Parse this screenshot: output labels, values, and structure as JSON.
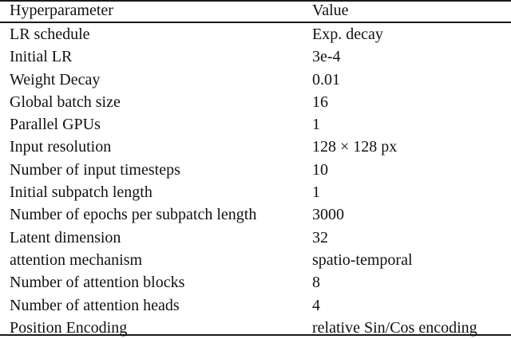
{
  "table": {
    "header": {
      "param": "Hyperparameter",
      "value": "Value"
    },
    "rows": [
      {
        "param": "LR schedule",
        "value": "Exp. decay"
      },
      {
        "param": "Initial LR",
        "value": "3e-4"
      },
      {
        "param": "Weight Decay",
        "value": "0.01"
      },
      {
        "param": "Global batch size",
        "value": "16"
      },
      {
        "param": "Parallel GPUs",
        "value": "1"
      },
      {
        "param": "Input resolution",
        "value": "128 × 128 px"
      },
      {
        "param": "Number of input timesteps",
        "value": "10"
      },
      {
        "param": "Initial subpatch length",
        "value": "1"
      },
      {
        "param": "Number of epochs per subpatch length",
        "value": "3000"
      },
      {
        "param": "Latent dimension",
        "value": "32"
      },
      {
        "param": "attention mechanism",
        "value": "spatio-temporal"
      },
      {
        "param": "Number of attention blocks",
        "value": "8"
      },
      {
        "param": "Number of attention heads",
        "value": "4"
      },
      {
        "param": "Position Encoding",
        "value": "relative Sin/Cos encoding"
      }
    ]
  }
}
